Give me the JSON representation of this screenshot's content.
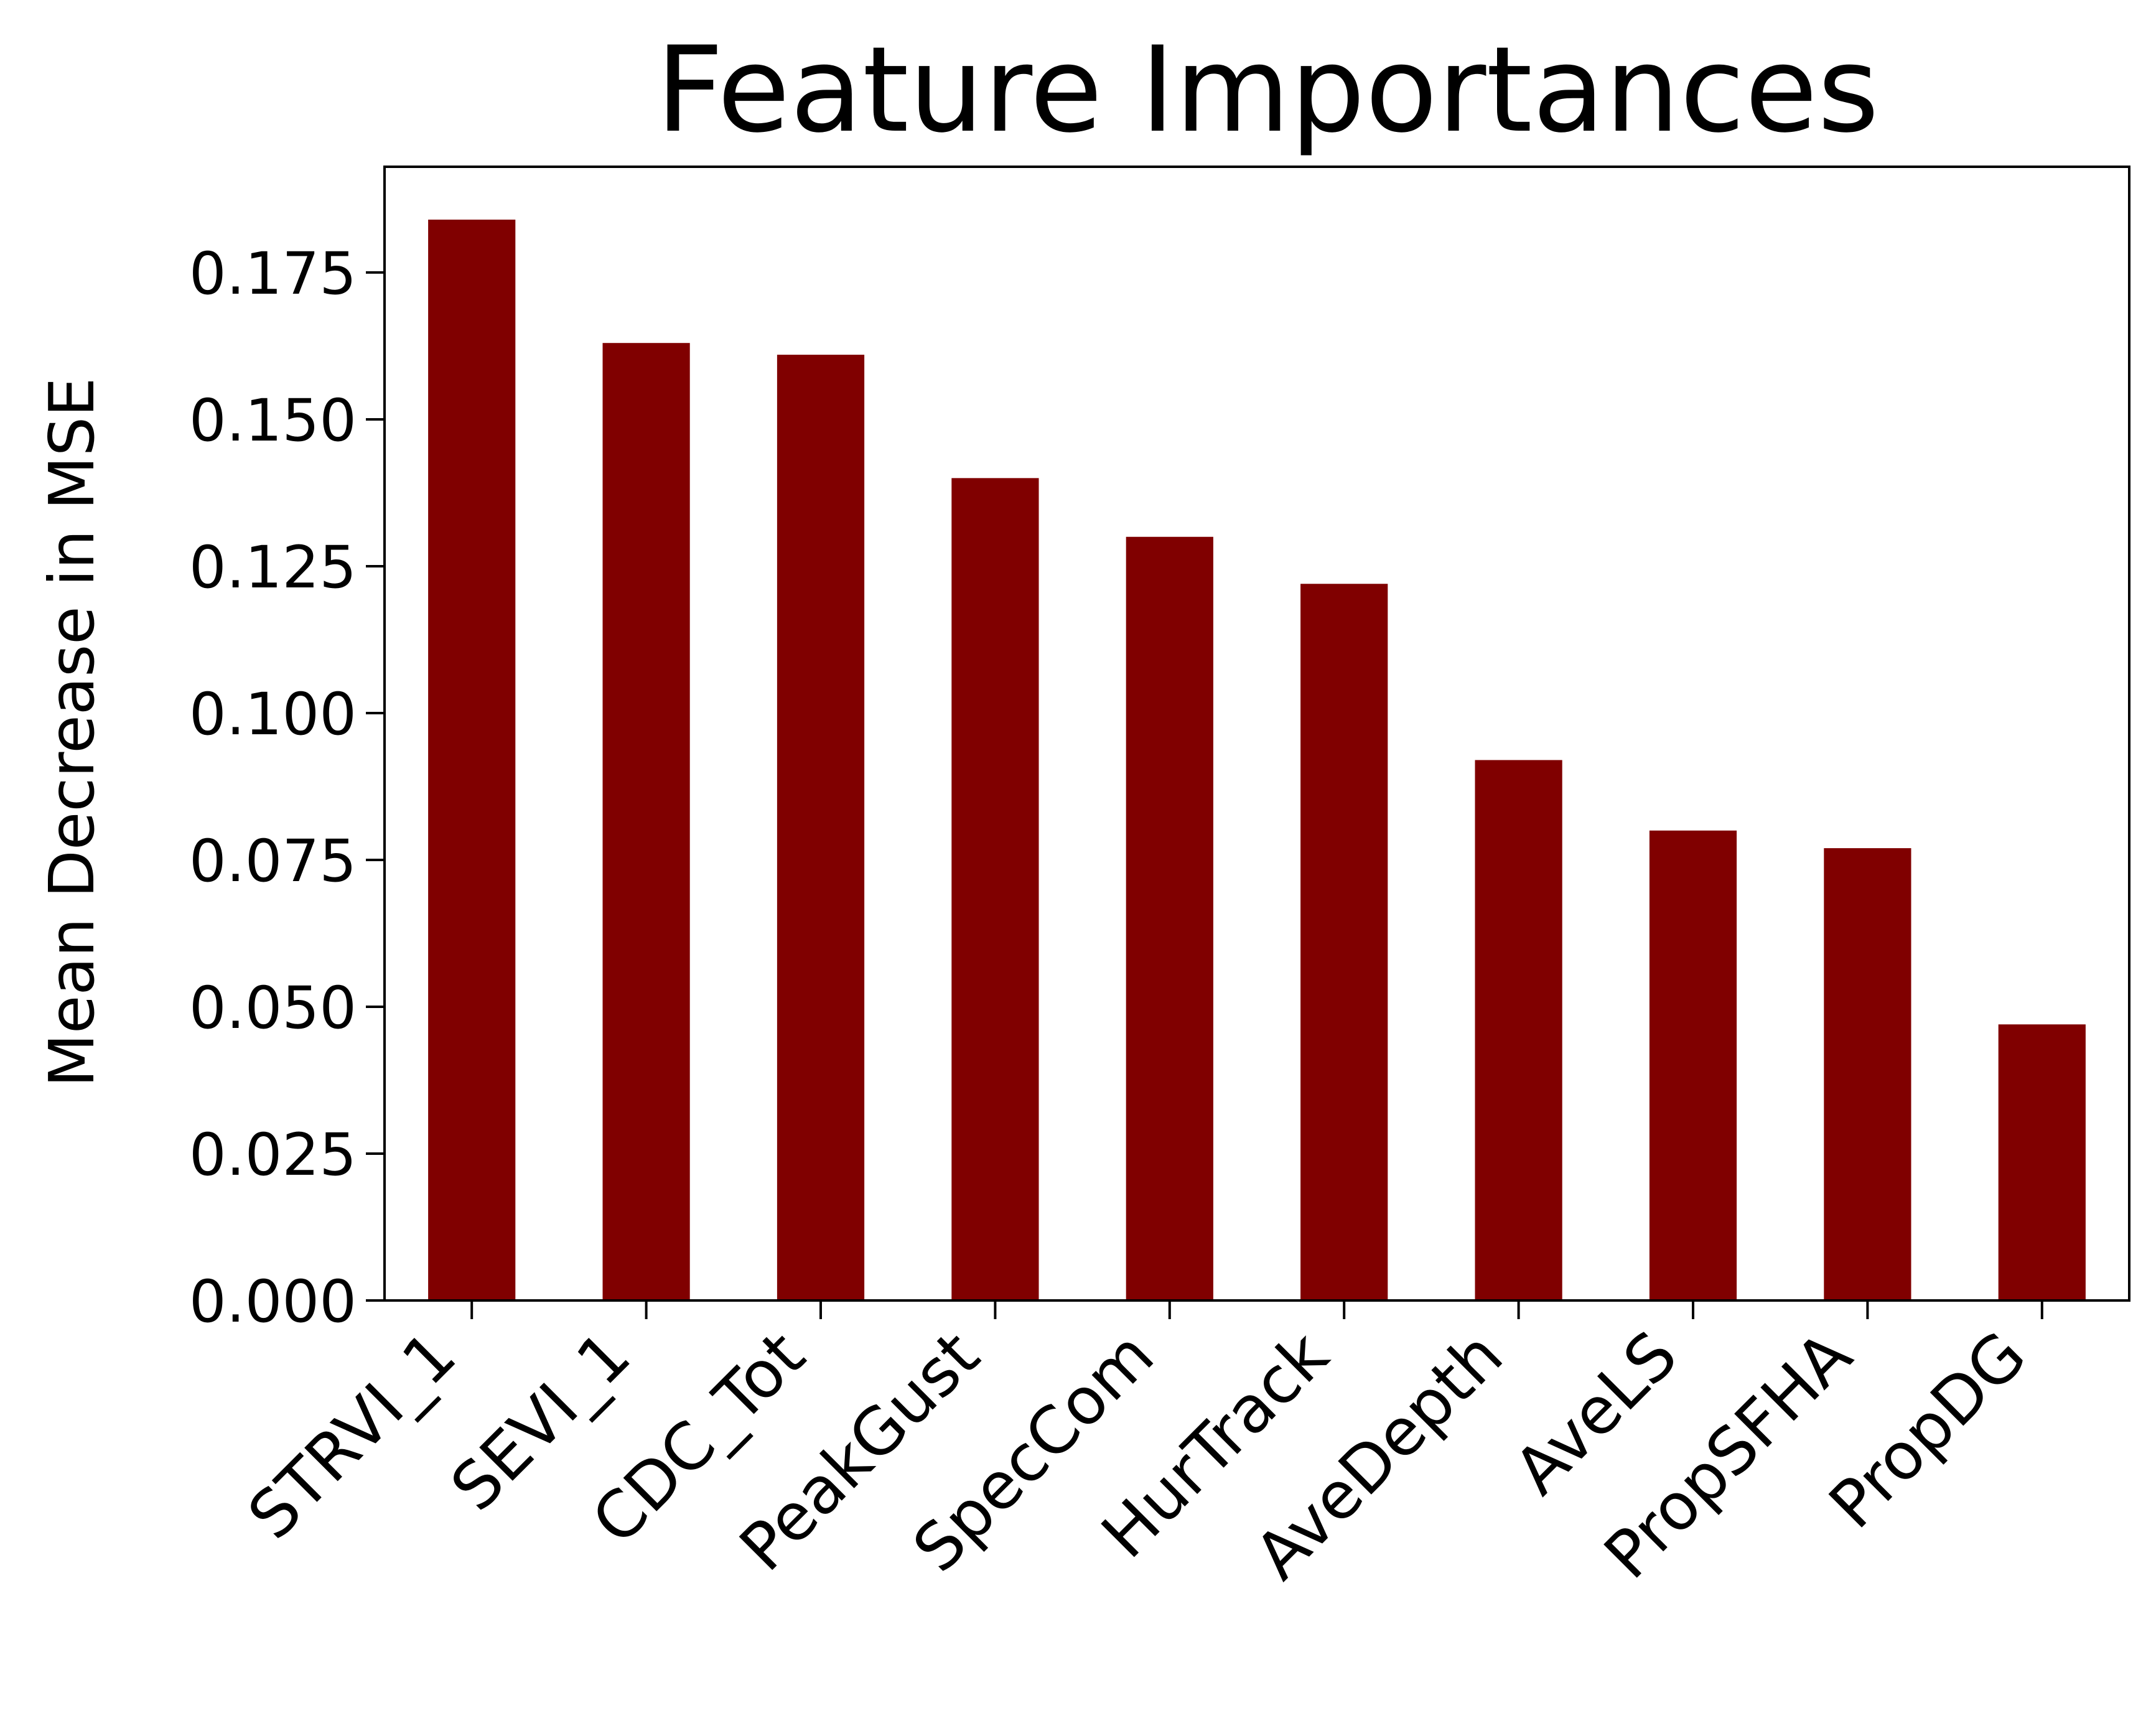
{
  "chart_data": {
    "type": "bar",
    "title": "Feature Importances",
    "xlabel": "",
    "ylabel": "Mean Decrease in MSE",
    "categories": [
      "STRVI_1",
      "SEVI_1",
      "CDC_Tot",
      "PeakGust",
      "SpecCom",
      "HurTrack",
      "AveDepth",
      "AveLS",
      "PropSFHA",
      "PropDG"
    ],
    "values": [
      0.184,
      0.163,
      0.161,
      0.14,
      0.13,
      0.122,
      0.092,
      0.08,
      0.077,
      0.047
    ],
    "yticks": [
      "0.000",
      "0.025",
      "0.050",
      "0.075",
      "0.100",
      "0.125",
      "0.150",
      "0.175"
    ],
    "ylim": [
      0,
      0.193
    ],
    "bar_color": "#800000",
    "grid": false,
    "legend": "none"
  }
}
